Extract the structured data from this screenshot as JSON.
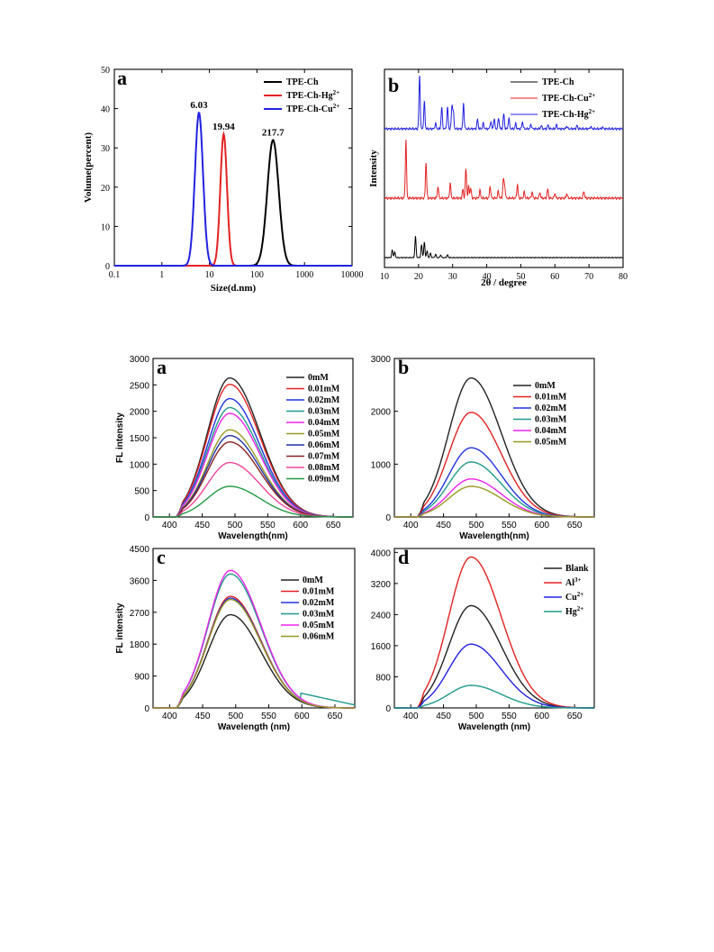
{
  "chart_data": [
    {
      "id": "size",
      "type": "line",
      "letter": "a",
      "xlabel": "Size(d.nm)",
      "ylabel": "Volume(percent)",
      "xscale": "log",
      "xlim": [
        0.1,
        10000
      ],
      "ylim": [
        0,
        50
      ],
      "xticks": [
        "0.1",
        "1",
        "10",
        "100",
        "1000",
        "10000"
      ],
      "yticks": [
        "0",
        "10",
        "20",
        "30",
        "40",
        "50"
      ],
      "legend_position": "top-right",
      "series": [
        {
          "name": "TPE-Ch",
          "color": "#000000",
          "peak_x": 217.7,
          "peak_y": 32,
          "width": 0.12
        },
        {
          "name": "TPE-Ch-Hg",
          "sup": "2+",
          "color": "#e32222",
          "peak_x": 19.94,
          "peak_y": 33.5,
          "width": 0.07
        },
        {
          "name": "TPE-Ch-Cu",
          "sup": "2+",
          "color": "#2222e0",
          "peak_x": 6.03,
          "peak_y": 39,
          "width": 0.085
        }
      ],
      "annotations": [
        "6.03",
        "19.94",
        "217.7"
      ]
    },
    {
      "id": "xrd",
      "type": "line",
      "letter": "b",
      "xlabel": "2θ / degree",
      "ylabel": "Intensity",
      "xlim": [
        10,
        80
      ],
      "xticks": [
        "10",
        "20",
        "30",
        "40",
        "50",
        "60",
        "70",
        "80"
      ],
      "legend_position": "top-right",
      "series": [
        {
          "name": "TPE-Ch",
          "color": "#000000",
          "baseline": 0.05,
          "scale": 0.12,
          "peaks": [
            [
              12.3,
              0.35
            ],
            [
              13,
              0.25
            ],
            [
              19.1,
              1
            ],
            [
              20.9,
              0.6
            ],
            [
              21.7,
              0.7
            ],
            [
              22.5,
              0.3
            ],
            [
              23.5,
              0.2
            ],
            [
              25,
              0.15
            ],
            [
              26.5,
              0.12
            ],
            [
              28.5,
              0.12
            ]
          ]
        },
        {
          "name": "TPE-Ch-Cu",
          "sup": "2+",
          "color": "#e32222",
          "baseline": 0.35,
          "scale": 0.33,
          "peaks": [
            [
              16.3,
              1
            ],
            [
              22.2,
              0.6
            ],
            [
              25.7,
              0.2
            ],
            [
              29.3,
              0.25
            ],
            [
              33,
              0.15
            ],
            [
              33.9,
              0.5
            ],
            [
              34.7,
              0.2
            ],
            [
              35.3,
              0.17
            ],
            [
              38,
              0.13
            ],
            [
              41,
              0.2
            ],
            [
              43.4,
              0.12
            ],
            [
              44.9,
              0.32
            ],
            [
              45.3,
              0.18
            ],
            [
              49,
              0.23
            ],
            [
              51,
              0.1
            ],
            [
              53.3,
              0.1
            ],
            [
              55.6,
              0.1
            ],
            [
              57.9,
              0.15
            ],
            [
              60,
              0.08
            ],
            [
              63.5,
              0.08
            ],
            [
              68.5,
              0.12
            ]
          ]
        },
        {
          "name": "TPE-Ch-Hg",
          "sup": "2+",
          "color": "#2222e0",
          "baseline": 0.7,
          "scale": 0.3,
          "peaks": [
            [
              20.3,
              1
            ],
            [
              21.7,
              0.5
            ],
            [
              25,
              0.1
            ],
            [
              26.8,
              0.4
            ],
            [
              28.5,
              0.4
            ],
            [
              29.8,
              0.42
            ],
            [
              30.2,
              0.3
            ],
            [
              33.2,
              0.48
            ],
            [
              37.3,
              0.18
            ],
            [
              39,
              0.1
            ],
            [
              41.2,
              0.14
            ],
            [
              42.2,
              0.18
            ],
            [
              43.5,
              0.2
            ],
            [
              45,
              0.28
            ],
            [
              46.5,
              0.2
            ],
            [
              48.5,
              0.1
            ],
            [
              50.5,
              0.13
            ],
            [
              53,
              0.08
            ],
            [
              56,
              0.06
            ],
            [
              58,
              0.07
            ],
            [
              60.5,
              0.07
            ],
            [
              63.5,
              0.05
            ],
            [
              66.5,
              0.06
            ],
            [
              70.5,
              0.04
            ],
            [
              74,
              0.03
            ]
          ]
        }
      ]
    },
    {
      "id": "fla",
      "type": "line",
      "letter": "a",
      "xlabel": "Wavelength(nm)",
      "ylabel": "FL intensity",
      "xlim": [
        375,
        680
      ],
      "ylim": [
        0,
        3000
      ],
      "xticks": [
        "400",
        "450",
        "500",
        "550",
        "600",
        "650"
      ],
      "yticks": [
        "0",
        "500",
        "1000",
        "1500",
        "2000",
        "2500",
        "3000"
      ],
      "legend_position": "top-right",
      "series": [
        {
          "name": "0mM",
          "color": "#222222",
          "peak": 2630
        },
        {
          "name": "0.01mM",
          "color": "#e32222",
          "peak": 2510
        },
        {
          "name": "0.02mM",
          "color": "#2233dd",
          "peak": 2240
        },
        {
          "name": "0.03mM",
          "color": "#1f9a8a",
          "peak": 2070
        },
        {
          "name": "0.04mM",
          "color": "#ee22ee",
          "peak": 1960
        },
        {
          "name": "0.05mM",
          "color": "#999922",
          "peak": 1650
        },
        {
          "name": "0.06mM",
          "color": "#2233aa",
          "peak": 1540
        },
        {
          "name": "0.07mM",
          "color": "#882222",
          "peak": 1420
        },
        {
          "name": "0.08mM",
          "color": "#ee4499",
          "peak": 1030
        },
        {
          "name": "0.09mM",
          "color": "#229944",
          "peak": 580
        }
      ]
    },
    {
      "id": "flb",
      "type": "line",
      "letter": "b",
      "xlabel": "Wavelength(nm)",
      "ylabel": "",
      "xlim": [
        375,
        680
      ],
      "ylim": [
        0,
        3000
      ],
      "xticks": [
        "400",
        "450",
        "500",
        "550",
        "600",
        "650"
      ],
      "yticks": [
        "0",
        "1000",
        "2000",
        "3000"
      ],
      "legend_position": "top-right",
      "series": [
        {
          "name": "0mM",
          "color": "#222222",
          "peak": 2630
        },
        {
          "name": "0.01mM",
          "color": "#e32222",
          "peak": 1980
        },
        {
          "name": "0.02mM",
          "color": "#2233dd",
          "peak": 1310
        },
        {
          "name": "0.03mM",
          "color": "#1f9a8a",
          "peak": 1040
        },
        {
          "name": "0.04mM",
          "color": "#ee22ee",
          "peak": 720
        },
        {
          "name": "0.05mM",
          "color": "#999922",
          "peak": 580
        }
      ]
    },
    {
      "id": "flc",
      "type": "line",
      "letter": "c",
      "xlabel": "Wavelength (nm)",
      "ylabel": "FL intensity",
      "xlim": [
        375,
        680
      ],
      "ylim": [
        0,
        4500
      ],
      "xticks": [
        "400",
        "450",
        "500",
        "550",
        "600",
        "650"
      ],
      "yticks": [
        "0",
        "900",
        "1800",
        "2700",
        "3600",
        "4500"
      ],
      "legend_position": "top-right",
      "series": [
        {
          "name": "0mM",
          "color": "#222222",
          "peak": 2630
        },
        {
          "name": "0.01mM",
          "color": "#e32222",
          "peak": 3150
        },
        {
          "name": "0.02mM",
          "color": "#2233dd",
          "peak": 3100
        },
        {
          "name": "0.03mM",
          "color": "#1f9a8a",
          "peak": 3780,
          "tail": true
        },
        {
          "name": "0.05mM",
          "color": "#ee22ee",
          "peak": 3880
        },
        {
          "name": "0.06mM",
          "color": "#999922",
          "peak": 3060
        }
      ]
    },
    {
      "id": "fld",
      "type": "line",
      "letter": "d",
      "xlabel": "Wavelength (nm)",
      "ylabel": "",
      "xlim": [
        375,
        680
      ],
      "ylim": [
        0,
        4100
      ],
      "xticks": [
        "400",
        "450",
        "500",
        "550",
        "600",
        "650"
      ],
      "yticks": [
        "0",
        "800",
        "1600",
        "2400",
        "3200",
        "4000"
      ],
      "legend_position": "top-right",
      "series": [
        {
          "name": "Blank",
          "color": "#222222",
          "peak": 2630
        },
        {
          "name": "Al",
          "sup": "3+",
          "color": "#e32222",
          "peak": 3880
        },
        {
          "name": "Cu",
          "sup": "2+",
          "color": "#2222e0",
          "peak": 1640
        },
        {
          "name": "Hg",
          "sup": "2+",
          "color": "#1f9a8a",
          "peak": 580
        }
      ]
    }
  ]
}
